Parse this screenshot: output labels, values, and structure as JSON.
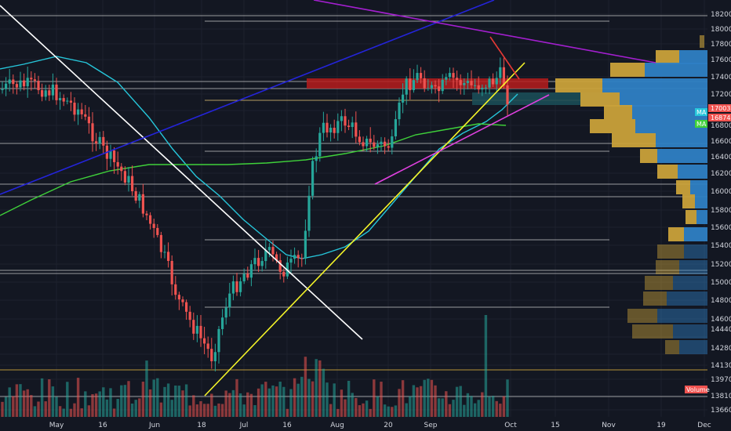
{
  "chart_data": {
    "type": "candlestick",
    "price_axis_labels": [
      "18200",
      "18000",
      "17800",
      "17600",
      "17400",
      "17200",
      "17003",
      "16874",
      "16800",
      "16600",
      "16400",
      "16200",
      "16000",
      "15800",
      "15600",
      "15400",
      "15200",
      "15000",
      "14800",
      "14600",
      "14440",
      "14280",
      "14130",
      "13970",
      "13810",
      "13660"
    ],
    "time_axis_labels": [
      "May",
      "16",
      "Jun",
      "18",
      "Jul",
      "16",
      "Aug",
      "20",
      "Sep",
      "Oct",
      "15",
      "Nov",
      "19",
      "Dec"
    ],
    "last_price_tag": "17003",
    "ma_price_tag": "16874",
    "ma_tag_label": "MA",
    "volume_tag": "Volume",
    "colors": {
      "up": "#26a69a",
      "down": "#ef5350",
      "background": "#131722",
      "ma_fast": "#26c6da",
      "ma_slow": "#3fd13a",
      "trend_white": "#ffffff",
      "trend_blue": "#2424d8",
      "trend_purple": "#a31fcf",
      "trend_yellow": "#f5f528",
      "trend_magenta": "#e040e0",
      "trend_red": "#e53935",
      "vp_gold": "#c9a13a",
      "vp_blue": "#2e7fc4",
      "zone_red": "#b71c1c",
      "zone_teal": "#1b4d56",
      "last_tag": "#ef5350",
      "ma_tag_bg": "#26c6da",
      "ma2_tag_bg": "#3fd13a"
    }
  }
}
